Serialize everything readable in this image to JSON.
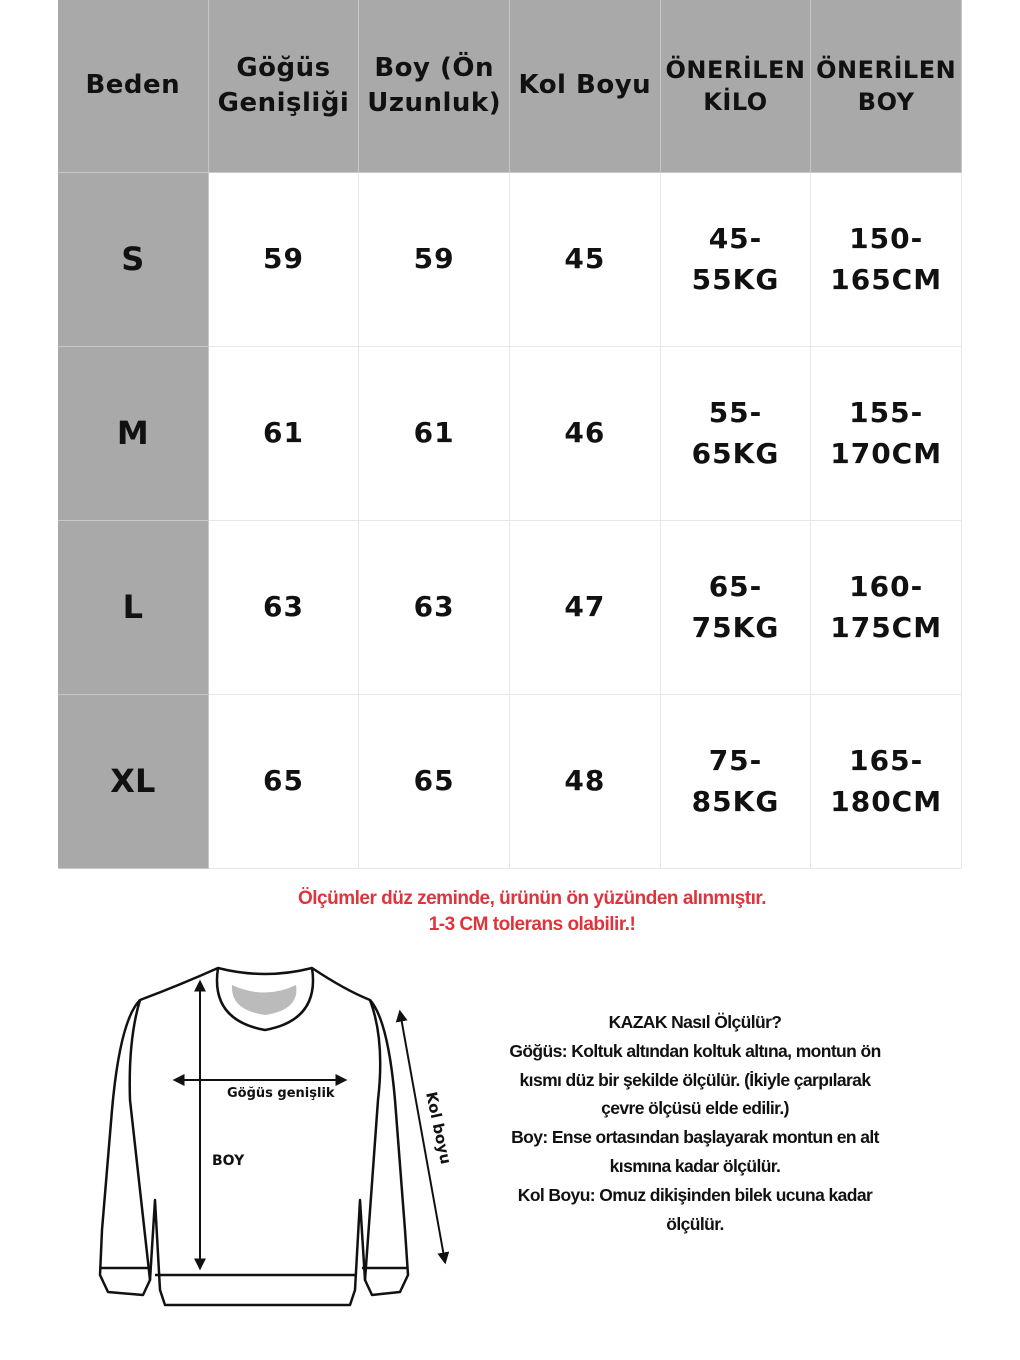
{
  "table": {
    "headers": [
      "Beden",
      "Göğüs\nGenişliği",
      "Boy (Ön\nUzunluk)",
      "Kol Boyu",
      "ÖNERİLEN\nKİLO",
      "ÖNERİLEN\nBOY"
    ],
    "rows": [
      [
        "S",
        "59",
        "59",
        "45",
        "45-\n55KG",
        "150-\n165CM"
      ],
      [
        "M",
        "61",
        "61",
        "46",
        "55-\n65KG",
        "155-\n170CM"
      ],
      [
        "L",
        "63",
        "63",
        "47",
        "65-\n75KG",
        "160-\n175CM"
      ],
      [
        "XL",
        "65",
        "65",
        "48",
        "75-\n85KG",
        "165-\n180CM"
      ]
    ]
  },
  "note": {
    "line1": "Ölçümler düz zeminde, ürünün ön yüzünden alınmıştır.",
    "line2": "1-3 CM tolerans olabilir.!",
    "color": "#e0343c"
  },
  "diagram": {
    "chest_label": "Göğüs genişlik",
    "length_label": "BOY",
    "sleeve_label": "Kol boyu"
  },
  "howto": {
    "title": "KAZAK Nasıl Ölçülür?",
    "lines": [
      "Göğüs: Koltuk altından koltuk altına, montun ön",
      "kısmı düz bir şekilde ölçülür. (İkiyle çarpılarak",
      "çevre ölçüsü elde edilir.)",
      "Boy: Ense ortasından başlayarak montun en alt",
      "kısmına kadar ölçülür.",
      "Kol Boyu: Omuz dikişinden bilek ucuna kadar",
      "ölçülür."
    ]
  }
}
